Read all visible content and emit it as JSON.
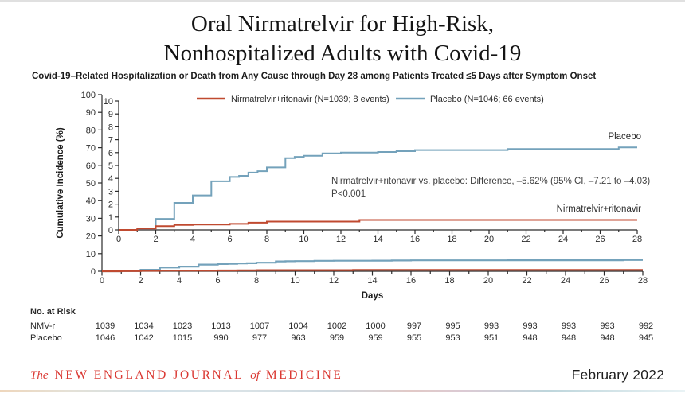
{
  "page": {
    "title_line1": "Oral Nirmatrelvir for High-Risk,",
    "title_line2": "Nonhospitalized Adults with Covid-19",
    "subtitle": "Covid-19–Related Hospitalization or Death from Any Cause through Day 28 among Patients Treated ≤5 Days after Symptom Onset"
  },
  "chart_data": {
    "type": "line",
    "step": true,
    "xlabel": "Days",
    "ylabel": "Cumulative Incidence (%)",
    "main_axis": {
      "xlim": [
        0,
        28
      ],
      "ylim": [
        0,
        100
      ],
      "xtick_step": 2,
      "ytick_step": 10
    },
    "inset_axis": {
      "xlim": [
        0,
        28
      ],
      "ylim": [
        0,
        10
      ],
      "xtick_step": 2,
      "ytick_step": 1
    },
    "grid": false,
    "legend_position": "top",
    "series": [
      {
        "name": "Placebo",
        "legend": "Placebo (N=1046; 66 events)",
        "end_label": "Placebo",
        "color": "#74a2bb",
        "n": 1046,
        "events": 66,
        "points": [
          [
            0,
            0
          ],
          [
            1,
            0.08
          ],
          [
            2,
            0.86
          ],
          [
            3,
            2.1
          ],
          [
            4,
            2.68
          ],
          [
            5,
            3.77
          ],
          [
            6,
            4.11
          ],
          [
            6.5,
            4.2
          ],
          [
            7,
            4.45
          ],
          [
            7.5,
            4.56
          ],
          [
            8,
            4.85
          ],
          [
            9,
            5.57
          ],
          [
            9.5,
            5.67
          ],
          [
            10,
            5.76
          ],
          [
            11,
            5.94
          ],
          [
            12,
            6.0
          ],
          [
            14,
            6.05
          ],
          [
            15,
            6.11
          ],
          [
            16,
            6.2
          ],
          [
            21,
            6.28
          ],
          [
            27,
            6.4
          ],
          [
            28,
            6.4
          ]
        ]
      },
      {
        "name": "Nirmatrelvir+ritonavir",
        "legend": "Nirmatrelvir+ritonavir (N=1039; 8 events)",
        "end_label": "Nirmatrelvir+ritonavir",
        "color": "#c04a30",
        "n": 1039,
        "events": 8,
        "points": [
          [
            0,
            0
          ],
          [
            1,
            0.1
          ],
          [
            2,
            0.29
          ],
          [
            3,
            0.38
          ],
          [
            4,
            0.42
          ],
          [
            6,
            0.47
          ],
          [
            7,
            0.56
          ],
          [
            8,
            0.65
          ],
          [
            13,
            0.77
          ],
          [
            28,
            0.77
          ]
        ]
      }
    ],
    "annotation": [
      "Nirmatrelvir+ritonavir vs. placebo: Difference, –5.62% (95% CI, –7.21 to –4.03)",
      "P<0.001"
    ]
  },
  "risk_table": {
    "header": "No. at Risk",
    "days": [
      0,
      2,
      4,
      6,
      8,
      10,
      12,
      14,
      16,
      18,
      20,
      22,
      24,
      26,
      28
    ],
    "rows": [
      {
        "label": "NMV-r",
        "values": [
          1039,
          1034,
          1023,
          1013,
          1007,
          1004,
          1002,
          1000,
          997,
          995,
          993,
          993,
          993,
          993,
          992
        ]
      },
      {
        "label": "Placebo",
        "values": [
          1046,
          1042,
          1015,
          990,
          977,
          963,
          959,
          959,
          955,
          953,
          951,
          948,
          948,
          948,
          945
        ]
      }
    ]
  },
  "footer": {
    "journal": {
      "the": "The",
      "body": "NEW ENGLAND JOURNAL",
      "of": "of",
      "medicine": "MEDICINE"
    },
    "brand_color": "#da3832",
    "date": "February 2022"
  },
  "colors": {
    "axis": "#2b2b2b",
    "annotation": "#3f3f3f",
    "treatment": "#c04a30",
    "placebo": "#74a2bb"
  }
}
